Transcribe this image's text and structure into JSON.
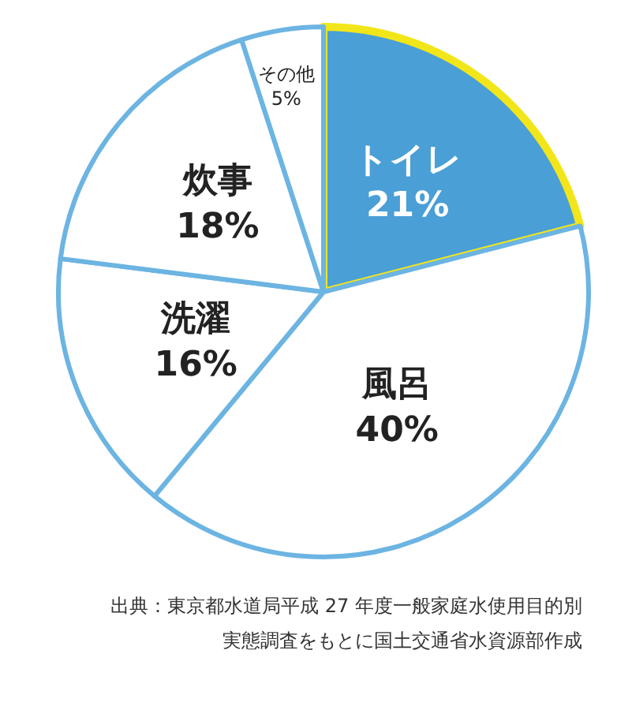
{
  "chart_data": {
    "type": "pie",
    "categories": [
      "トイレ",
      "風呂",
      "洗濯",
      "炊事",
      "その他"
    ],
    "values": [
      21,
      40,
      16,
      18,
      5
    ],
    "colors": [
      "#4a9fd6",
      "#ffffff",
      "#ffffff",
      "#ffffff",
      "#ffffff"
    ],
    "value_labels": [
      "21%",
      "40%",
      "16%",
      "18%",
      "5%"
    ],
    "legend": false,
    "annotations": [
      "出典：東京都水道局平成 27 年度一般家庭水使用目的別",
      "実態調査をもとに国土交通省水資源部作成"
    ]
  }
}
